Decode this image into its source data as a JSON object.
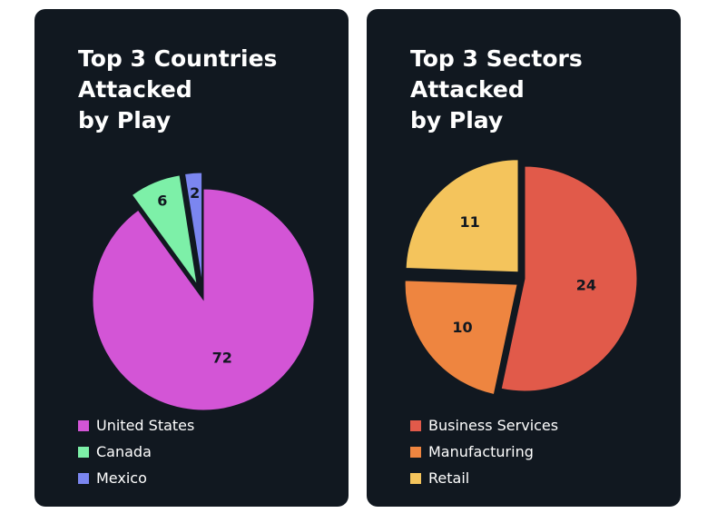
{
  "chart_data": [
    {
      "type": "pie",
      "title": [
        "Top 3 Countries",
        "Attacked",
        "by Play"
      ],
      "slices": [
        {
          "label": "United States",
          "value": 72,
          "color": "#d355d6",
          "exploded": false
        },
        {
          "label": "Canada",
          "value": 6,
          "color": "#7df0a8",
          "exploded": true
        },
        {
          "label": "Mexico",
          "value": 2,
          "color": "#7b86f0",
          "exploded": true
        }
      ]
    },
    {
      "type": "pie",
      "title": [
        "Top 3 Sectors",
        "Attacked",
        "by Play"
      ],
      "slices": [
        {
          "label": "Business Services",
          "value": 24,
          "color": "#e15a4a",
          "exploded": false
        },
        {
          "label": "Manufacturing",
          "value": 10,
          "color": "#ee8540",
          "exploded": true
        },
        {
          "label": "Retail",
          "value": 11,
          "color": "#f4c45c",
          "exploded": true
        }
      ]
    }
  ],
  "colors": {
    "card_background": "#111820",
    "page_background": "#ffffff",
    "text": "#ffffff"
  }
}
